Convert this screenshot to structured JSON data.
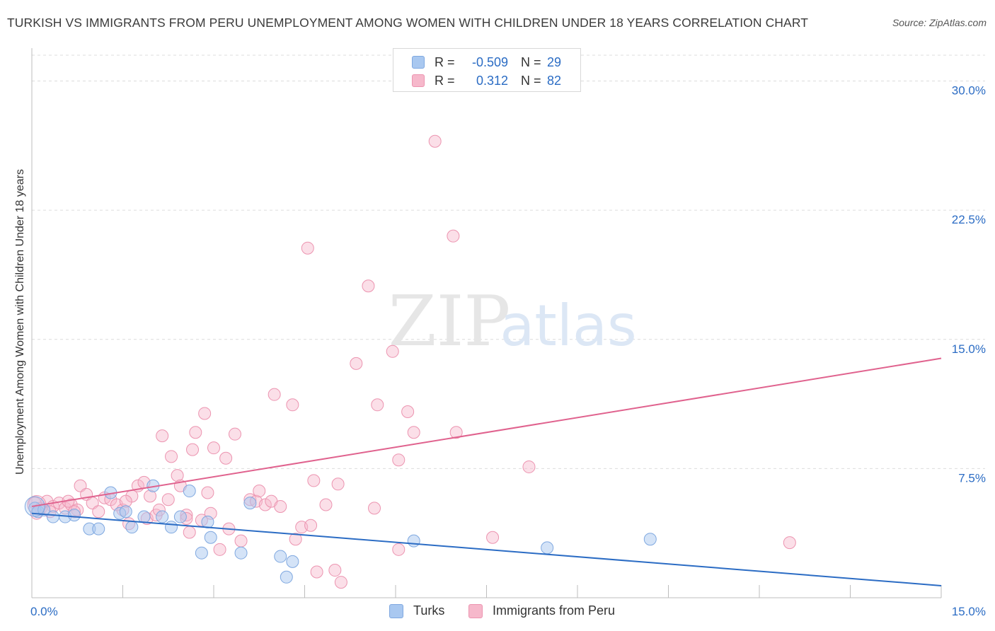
{
  "header": {
    "title": "TURKISH VS IMMIGRANTS FROM PERU UNEMPLOYMENT AMONG WOMEN WITH CHILDREN UNDER 18 YEARS CORRELATION CHART",
    "source": "Source: ZipAtlas.com"
  },
  "watermark": {
    "zip": "ZIP",
    "atlas": "atlas"
  },
  "legend": {
    "r_label": "R =",
    "n_label": "N =",
    "turks": {
      "r": "-0.509",
      "n": "29"
    },
    "peru": {
      "r": "0.312",
      "n": "82"
    }
  },
  "bottom_legend": {
    "turks": "Turks",
    "peru": "Immigrants from Peru"
  },
  "colors": {
    "turks_fill": "#a9c8f0",
    "turks_stroke": "#7fa8e0",
    "turks_line": "#2b6cc4",
    "peru_fill": "#f6b8cb",
    "peru_stroke": "#ec94b0",
    "peru_line": "#e0628e",
    "tick_text": "#2b6cc4",
    "grid": "#dcdcdc"
  },
  "chart_data": {
    "type": "scatter",
    "title": "TURKISH VS IMMIGRANTS FROM PERU UNEMPLOYMENT AMONG WOMEN WITH CHILDREN UNDER 18 YEARS CORRELATION CHART",
    "xlabel": "",
    "ylabel": "Unemployment Among Women with Children Under 18 years",
    "xlim": [
      0,
      15
    ],
    "ylim": [
      0,
      31.5
    ],
    "y_ticks": [
      7.5,
      15.0,
      22.5,
      30.0
    ],
    "y_tick_labels": [
      "7.5%",
      "15.0%",
      "22.5%",
      "30.0%"
    ],
    "x_tick_labels": [
      "0.0%",
      "15.0%"
    ],
    "grid": true,
    "legend_position": "top-center",
    "series": [
      {
        "name": "Turks",
        "r": -0.509,
        "n": 29,
        "trend": {
          "x": [
            0,
            15
          ],
          "y": [
            4.9,
            0.7
          ]
        },
        "points": [
          [
            0.05,
            5.2
          ],
          [
            0.1,
            5.0
          ],
          [
            0.2,
            5.1
          ],
          [
            0.35,
            4.7
          ],
          [
            0.55,
            4.7
          ],
          [
            0.7,
            4.8
          ],
          [
            0.95,
            4.0
          ],
          [
            1.1,
            4.0
          ],
          [
            1.3,
            6.1
          ],
          [
            1.45,
            4.9
          ],
          [
            1.55,
            5.0
          ],
          [
            1.65,
            4.1
          ],
          [
            1.85,
            4.7
          ],
          [
            2.0,
            6.5
          ],
          [
            2.15,
            4.7
          ],
          [
            2.3,
            4.1
          ],
          [
            2.45,
            4.7
          ],
          [
            2.6,
            6.2
          ],
          [
            2.8,
            2.6
          ],
          [
            2.9,
            4.4
          ],
          [
            2.95,
            3.5
          ],
          [
            3.45,
            2.6
          ],
          [
            3.6,
            5.5
          ],
          [
            4.1,
            2.4
          ],
          [
            4.2,
            1.2
          ],
          [
            4.3,
            2.1
          ],
          [
            6.3,
            3.3
          ],
          [
            8.5,
            2.9
          ],
          [
            10.2,
            3.4
          ]
        ]
      },
      {
        "name": "Immigrants from Peru",
        "r": 0.312,
        "n": 82,
        "trend": {
          "x": [
            0,
            15
          ],
          "y": [
            5.3,
            13.9
          ]
        },
        "points": [
          [
            0.05,
            5.5
          ],
          [
            0.15,
            5.2
          ],
          [
            0.25,
            5.6
          ],
          [
            0.35,
            5.3
          ],
          [
            0.45,
            5.5
          ],
          [
            0.55,
            5.2
          ],
          [
            0.65,
            5.4
          ],
          [
            0.75,
            5.1
          ],
          [
            0.8,
            6.5
          ],
          [
            0.9,
            6.0
          ],
          [
            1.0,
            5.5
          ],
          [
            1.1,
            5.0
          ],
          [
            1.2,
            5.8
          ],
          [
            1.3,
            5.7
          ],
          [
            1.4,
            5.4
          ],
          [
            1.5,
            5.1
          ],
          [
            1.6,
            4.3
          ],
          [
            1.65,
            5.9
          ],
          [
            1.75,
            6.5
          ],
          [
            1.85,
            6.7
          ],
          [
            1.9,
            4.6
          ],
          [
            1.95,
            5.9
          ],
          [
            2.05,
            4.8
          ],
          [
            2.1,
            5.1
          ],
          [
            2.15,
            9.4
          ],
          [
            2.25,
            5.7
          ],
          [
            2.3,
            8.2
          ],
          [
            2.4,
            7.1
          ],
          [
            2.45,
            6.5
          ],
          [
            2.55,
            4.8
          ],
          [
            2.6,
            3.8
          ],
          [
            2.65,
            8.6
          ],
          [
            2.7,
            9.6
          ],
          [
            2.8,
            4.5
          ],
          [
            2.85,
            10.7
          ],
          [
            2.9,
            6.1
          ],
          [
            2.95,
            4.9
          ],
          [
            3.0,
            8.7
          ],
          [
            3.1,
            2.8
          ],
          [
            3.2,
            8.1
          ],
          [
            3.25,
            4.0
          ],
          [
            3.35,
            9.5
          ],
          [
            3.45,
            3.3
          ],
          [
            3.6,
            5.7
          ],
          [
            3.7,
            5.6
          ],
          [
            3.75,
            6.2
          ],
          [
            3.85,
            5.4
          ],
          [
            3.95,
            5.6
          ],
          [
            4.0,
            11.8
          ],
          [
            4.1,
            5.3
          ],
          [
            4.3,
            11.2
          ],
          [
            4.35,
            3.4
          ],
          [
            4.45,
            4.1
          ],
          [
            4.55,
            20.3
          ],
          [
            4.6,
            4.2
          ],
          [
            4.65,
            6.8
          ],
          [
            4.7,
            1.5
          ],
          [
            4.85,
            5.4
          ],
          [
            5.0,
            1.6
          ],
          [
            5.05,
            6.6
          ],
          [
            5.1,
            0.9
          ],
          [
            5.35,
            13.6
          ],
          [
            5.55,
            18.1
          ],
          [
            5.65,
            5.2
          ],
          [
            5.7,
            11.2
          ],
          [
            5.95,
            14.3
          ],
          [
            6.05,
            8.0
          ],
          [
            6.05,
            2.8
          ],
          [
            6.2,
            10.8
          ],
          [
            6.3,
            9.6
          ],
          [
            6.65,
            26.5
          ],
          [
            6.95,
            21.0
          ],
          [
            7.0,
            9.6
          ],
          [
            7.6,
            3.5
          ],
          [
            8.2,
            7.6
          ],
          [
            12.5,
            3.2
          ],
          [
            0.08,
            4.9
          ],
          [
            0.3,
            5.0
          ],
          [
            0.6,
            5.6
          ],
          [
            0.7,
            5.0
          ],
          [
            1.55,
            5.6
          ],
          [
            2.55,
            4.6
          ]
        ]
      }
    ]
  }
}
